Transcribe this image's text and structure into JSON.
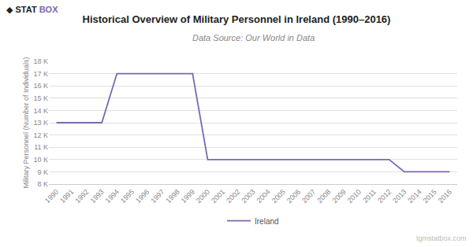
{
  "chart_data": {
    "type": "line",
    "title": "Historical Overview of Military Personnel in Ireland (1990–2016)",
    "subtitle": "Data Source: Our World in Data",
    "y_label": "Military Personnel (Number of Individuals)",
    "x": [
      1990,
      1991,
      1992,
      1993,
      1994,
      1995,
      1996,
      1997,
      1998,
      1999,
      2000,
      2001,
      2002,
      2003,
      2004,
      2005,
      2006,
      2007,
      2008,
      2009,
      2010,
      2011,
      2012,
      2013,
      2014,
      2015,
      2016
    ],
    "series": [
      {
        "name": "Ireland",
        "color": "#7B68AE",
        "values": [
          13000,
          13000,
          13000,
          13000,
          17000,
          17000,
          17000,
          17000,
          17000,
          17000,
          10000,
          10000,
          10000,
          10000,
          10000,
          10000,
          10000,
          10000,
          10000,
          10000,
          10000,
          10000,
          10000,
          9000,
          9000,
          9000,
          9000
        ]
      }
    ],
    "xlim": [
      1989.5,
      2016.5
    ],
    "xticks": [
      1990,
      1991,
      1992,
      1993,
      1994,
      1995,
      1996,
      1997,
      1998,
      1999,
      2000,
      2001,
      2002,
      2003,
      2004,
      2005,
      2006,
      2007,
      2008,
      2009,
      2010,
      2011,
      2012,
      2013,
      2014,
      2015,
      2016
    ],
    "ylim": [
      8000,
      18000
    ],
    "yticks": [
      {
        "value": 8000,
        "label": "8 K"
      },
      {
        "value": 9000,
        "label": "9 K"
      },
      {
        "value": 10000,
        "label": "10 K"
      },
      {
        "value": 11000,
        "label": "11 K"
      },
      {
        "value": 12000,
        "label": "12 K"
      },
      {
        "value": 13000,
        "label": "13 K"
      },
      {
        "value": 14000,
        "label": "14 K"
      },
      {
        "value": 15000,
        "label": "15 K"
      },
      {
        "value": 16000,
        "label": "16 K"
      },
      {
        "value": 17000,
        "label": "17 K"
      },
      {
        "value": 18000,
        "label": "18 K"
      }
    ],
    "grid": true,
    "legend": "bottom",
    "annotations": [
      {
        "text": "◆ STAT",
        "color": "#222222"
      },
      {
        "text": "BOX",
        "color": "#7B68AE"
      },
      {
        "text": "tgmstatbox.com"
      }
    ]
  }
}
